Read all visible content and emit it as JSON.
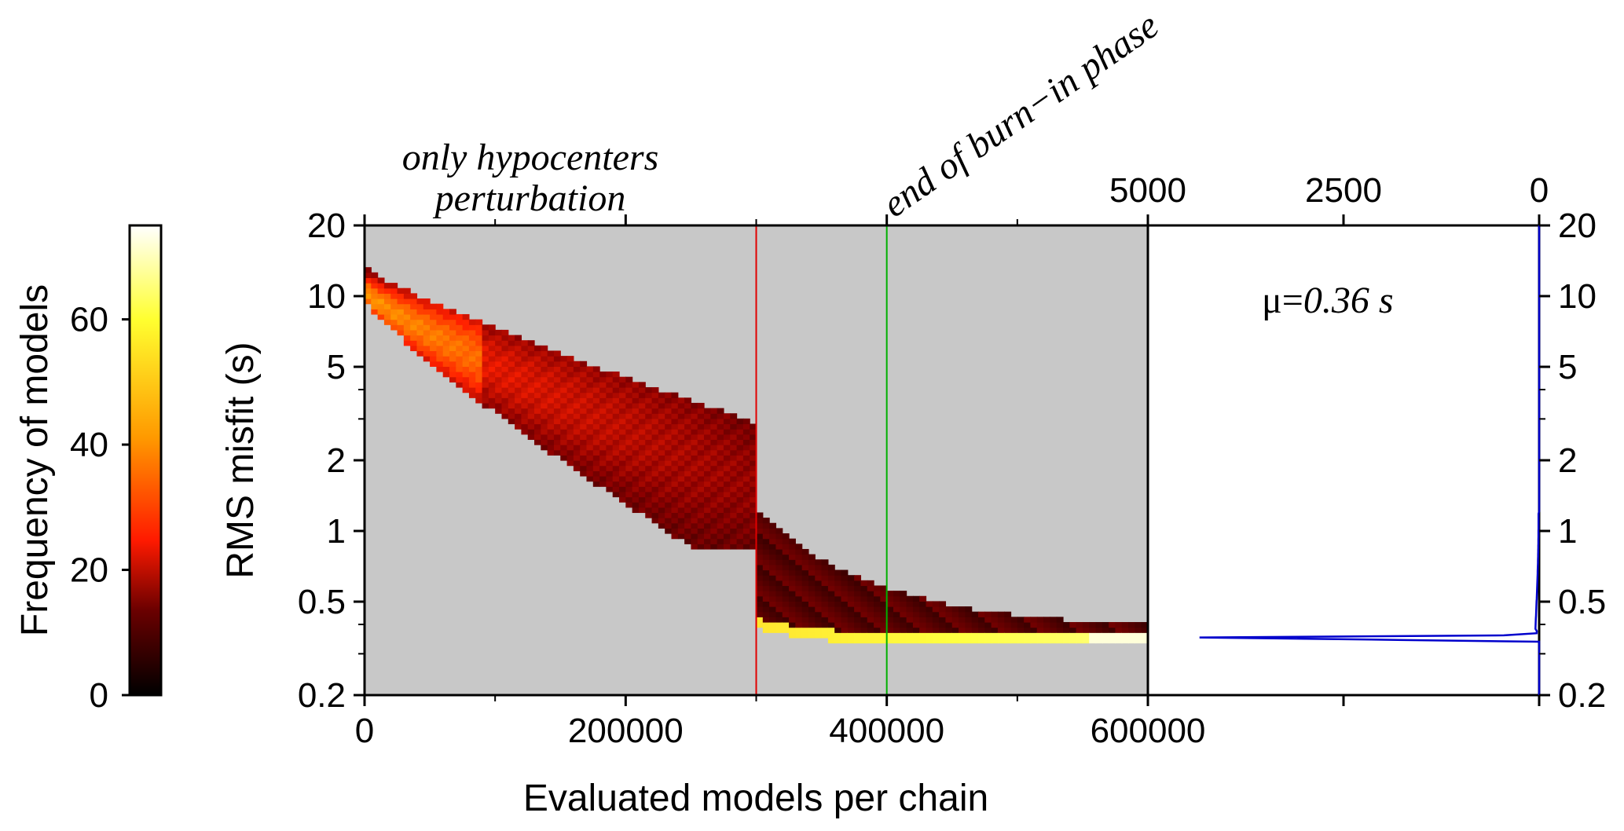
{
  "chart_data": {
    "type": "heatmap",
    "xlabel": "Evaluated models per chain",
    "ylabel": "RMS misfit (s)",
    "colorbar_label": "Frequency of models",
    "colorbar_ticks": [
      "0",
      "20",
      "40",
      "60"
    ],
    "colorbar_range": [
      0,
      75
    ],
    "x_ticks": [
      "0",
      "200000",
      "400000",
      "600000"
    ],
    "x_range": [
      0,
      600000
    ],
    "y_scale": "log",
    "y_range": [
      0.2,
      20
    ],
    "y_ticks": [
      "0.2",
      "0.5",
      "1",
      "2",
      "5",
      "10",
      "20"
    ],
    "y_tick_values": [
      0.2,
      0.5,
      1,
      2,
      5,
      10,
      20
    ],
    "annotations": {
      "hypo_line1": "only hypocenters",
      "hypo_line2": "perturbation",
      "burn_in": "end of burn−in phase"
    },
    "markers": {
      "hypocenter_end_x": 300000,
      "burn_in_end_x": 400000,
      "hypocenter_color": "#e00000",
      "burn_in_color": "#00b000"
    },
    "background_color": "#c8c8c8",
    "colormap": [
      "#000000",
      "#8b0000",
      "#ff2000",
      "#ffa000",
      "#ffff40",
      "#ffffff"
    ],
    "histogram": {
      "top_axis_ticks": [
        "5000",
        "2500",
        "0"
      ],
      "top_axis_values": [
        5000,
        2500,
        0
      ],
      "mean_label": "μ=",
      "mean_value": "0.36 s",
      "line_color": "#0000cc",
      "mode_misfit": 0.35,
      "mode_count": 4800
    },
    "description_of_density": [
      {
        "x_from": 0,
        "x_to": 300000,
        "misfit_start": [
          10,
          13
        ],
        "misfit_end": [
          0.85,
          2.8
        ]
      },
      {
        "x_from": 300000,
        "x_to": 600000,
        "misfit_start": [
          0.4,
          1.2
        ],
        "misfit_end": [
          0.34,
          0.37
        ]
      }
    ]
  }
}
